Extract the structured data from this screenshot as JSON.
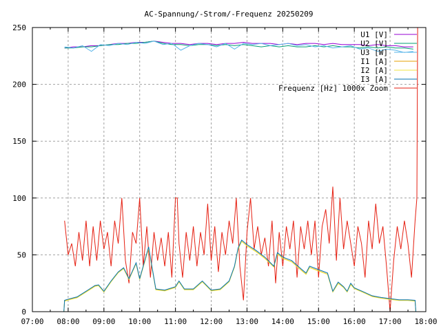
{
  "chart_data": {
    "type": "line",
    "title": "AC-Spannung/-Strom/-Frequenz 20250209",
    "xlabel": "",
    "ylabel": "",
    "xlim": [
      7,
      18
    ],
    "ylim": [
      0,
      250
    ],
    "grid": true,
    "legend_position": "top-right",
    "x_ticks": [
      "07:00",
      "08:00",
      "09:00",
      "10:00",
      "11:00",
      "12:00",
      "13:00",
      "14:00",
      "15:00",
      "16:00",
      "17:00",
      "18:00"
    ],
    "y_ticks": [
      "0",
      "50",
      "100",
      "150",
      "200",
      "250"
    ],
    "y_tick_values": [
      0,
      50,
      100,
      150,
      200,
      250
    ],
    "voltage_x": [
      7.9,
      8.15,
      8.4,
      8.65,
      8.9,
      9.15,
      9.4,
      9.65,
      9.9,
      10.15,
      10.4,
      10.65,
      10.9,
      11.15,
      11.4,
      11.65,
      11.9,
      12.15,
      12.4,
      12.65,
      12.9,
      13.15,
      13.4,
      13.65,
      13.9,
      14.15,
      14.4,
      14.65,
      14.9,
      15.15,
      15.4,
      15.65,
      15.9,
      16.15,
      16.4,
      16.65,
      16.9,
      17.15,
      17.4,
      17.65
    ],
    "current_x": [
      7.88,
      7.9,
      8.0,
      8.25,
      8.5,
      8.75,
      8.85,
      9.0,
      9.2,
      9.4,
      9.55,
      9.7,
      9.9,
      10.0,
      10.25,
      10.45,
      10.7,
      11.0,
      11.1,
      11.25,
      11.5,
      11.75,
      12.0,
      12.25,
      12.5,
      12.65,
      12.75,
      12.85,
      13.0,
      13.25,
      13.5,
      13.75,
      13.85,
      14.0,
      14.25,
      14.5,
      14.65,
      14.75,
      15.0,
      15.25,
      15.4,
      15.55,
      15.7,
      15.8,
      15.9,
      16.0,
      16.25,
      16.5,
      16.75,
      17.0,
      17.25,
      17.5,
      17.7,
      17.72
    ],
    "series": [
      {
        "name": "U1 [V]",
        "color": "#9400d3",
        "xkey": "voltage_x",
        "values": [
          232,
          233,
          233,
          234,
          234,
          235,
          236,
          236,
          237,
          237,
          238,
          237,
          236,
          236,
          235,
          236,
          236,
          235,
          236,
          236,
          237,
          236,
          236,
          236,
          235,
          236,
          235,
          236,
          236,
          235,
          236,
          235,
          235,
          235,
          234,
          235,
          234,
          234,
          233,
          233
        ]
      },
      {
        "name": "U2 [V]",
        "color": "#009e73",
        "xkey": "voltage_x",
        "values": [
          232,
          232,
          233,
          233,
          234,
          235,
          235,
          236,
          236,
          237,
          238,
          236,
          235,
          235,
          234,
          235,
          235,
          234,
          235,
          234,
          235,
          234,
          233,
          234,
          233,
          234,
          233,
          233,
          234,
          233,
          234,
          233,
          233,
          232,
          233,
          232,
          233,
          232,
          232,
          231
        ]
      },
      {
        "name": "U3 [W]",
        "color": "#56b4e9",
        "xkey": "voltage_x",
        "values": [
          233,
          232,
          234,
          229,
          235,
          234,
          236,
          235,
          237,
          236,
          238,
          235,
          236,
          230,
          234,
          236,
          235,
          233,
          236,
          231,
          236,
          235,
          236,
          234,
          235,
          236,
          234,
          235,
          233,
          234,
          232,
          233,
          234,
          231,
          232,
          229,
          231,
          230,
          228,
          229
        ]
      },
      {
        "name": "I1 [A]",
        "color": "#e69f00",
        "xkey": "current_x",
        "values": [
          0,
          9.5,
          10.5,
          12.5,
          17.5,
          22.5,
          23,
          17.5,
          26.5,
          34.5,
          38,
          28.5,
          42.5,
          28.5,
          56,
          19.5,
          18.5,
          21.5,
          26.5,
          19.5,
          19.5,
          26.5,
          18.5,
          19.5,
          26.5,
          39.5,
          55,
          62,
          58,
          53,
          47,
          39.5,
          51,
          47,
          44,
          37,
          33,
          39,
          36,
          33,
          17.5,
          25,
          21.5,
          17.5,
          24,
          20.5,
          17,
          13.5,
          12,
          11,
          10,
          10,
          9.5,
          0
        ]
      },
      {
        "name": "I2 [A]",
        "color": "#f0e442",
        "xkey": "current_x",
        "values": [
          0,
          9.2,
          10.2,
          12.2,
          17.2,
          22.2,
          22.8,
          17.2,
          26.2,
          34.2,
          37.8,
          28.2,
          42.2,
          28.2,
          55.8,
          19.2,
          18.2,
          21.2,
          26.2,
          19.2,
          19.2,
          26.2,
          18.2,
          19.2,
          26.2,
          39.2,
          54.8,
          61.8,
          57.8,
          52.8,
          46.8,
          39.2,
          50.8,
          46.8,
          43.8,
          36.8,
          32.8,
          38.8,
          35.8,
          32.8,
          17.2,
          24.8,
          21.2,
          17.2,
          23.8,
          20.2,
          16.8,
          13.2,
          11.8,
          10.8,
          9.8,
          9.8,
          9.2,
          0
        ]
      },
      {
        "name": "I3 [A]",
        "color": "#0072b2",
        "xkey": "current_x",
        "values": [
          0,
          10,
          11,
          13,
          18,
          23,
          23.6,
          18,
          27,
          35,
          38.6,
          29,
          43,
          29,
          57,
          20,
          19,
          22,
          27,
          20,
          20,
          27,
          19,
          20,
          27,
          40,
          56,
          63,
          59,
          54,
          48,
          40,
          52,
          48,
          45,
          38,
          34,
          40,
          37,
          34,
          18,
          26,
          22,
          18,
          25,
          21,
          17.5,
          14,
          12.5,
          11.5,
          10.5,
          10.5,
          10,
          0
        ]
      },
      {
        "name": "Frequenz [Hz] 1000x Zoom",
        "color": "#e51e10",
        "xkey": "freq_x",
        "values": [
          80,
          50,
          60,
          40,
          70,
          45,
          80,
          40,
          75,
          45,
          80,
          55,
          70,
          40,
          80,
          60,
          100,
          45,
          25,
          70,
          60,
          100,
          40,
          75,
          30,
          70,
          45,
          65,
          40,
          70,
          30,
          100,
          100,
          60,
          30,
          70,
          45,
          75,
          40,
          70,
          50,
          95,
          45,
          75,
          35,
          70,
          50,
          80,
          60,
          100,
          40,
          10,
          70,
          100,
          55,
          75,
          50,
          65,
          40,
          80,
          25,
          70,
          40,
          75,
          55,
          80,
          30,
          75,
          55,
          80,
          50,
          80,
          30,
          75,
          90,
          60,
          110,
          45,
          100,
          55,
          80,
          60,
          40,
          75,
          60,
          30,
          80,
          55,
          95,
          60,
          75,
          40,
          0,
          45,
          75,
          55,
          80,
          60,
          30,
          80,
          100,
          250
        ]
      }
    ],
    "freq_x": [
      7.9,
      8.0,
      8.1,
      8.2,
      8.3,
      8.4,
      8.5,
      8.6,
      8.7,
      8.8,
      8.9,
      9.0,
      9.1,
      9.2,
      9.3,
      9.4,
      9.5,
      9.6,
      9.7,
      9.8,
      9.9,
      10.0,
      10.1,
      10.2,
      10.3,
      10.4,
      10.5,
      10.6,
      10.7,
      10.8,
      10.9,
      11.0,
      11.05,
      11.1,
      11.2,
      11.3,
      11.4,
      11.5,
      11.6,
      11.7,
      11.8,
      11.9,
      12.0,
      12.1,
      12.2,
      12.3,
      12.4,
      12.5,
      12.6,
      12.7,
      12.8,
      12.9,
      13.0,
      13.1,
      13.2,
      13.3,
      13.4,
      13.5,
      13.6,
      13.7,
      13.8,
      13.9,
      14.0,
      14.1,
      14.2,
      14.3,
      14.4,
      14.5,
      14.6,
      14.7,
      14.8,
      14.9,
      15.0,
      15.1,
      15.2,
      15.3,
      15.4,
      15.5,
      15.6,
      15.7,
      15.8,
      15.9,
      16.0,
      16.1,
      16.2,
      16.3,
      16.4,
      16.5,
      16.6,
      16.7,
      16.8,
      16.9,
      17.0,
      17.1,
      17.2,
      17.3,
      17.4,
      17.5,
      17.6,
      17.7,
      17.75,
      17.77
    ]
  }
}
